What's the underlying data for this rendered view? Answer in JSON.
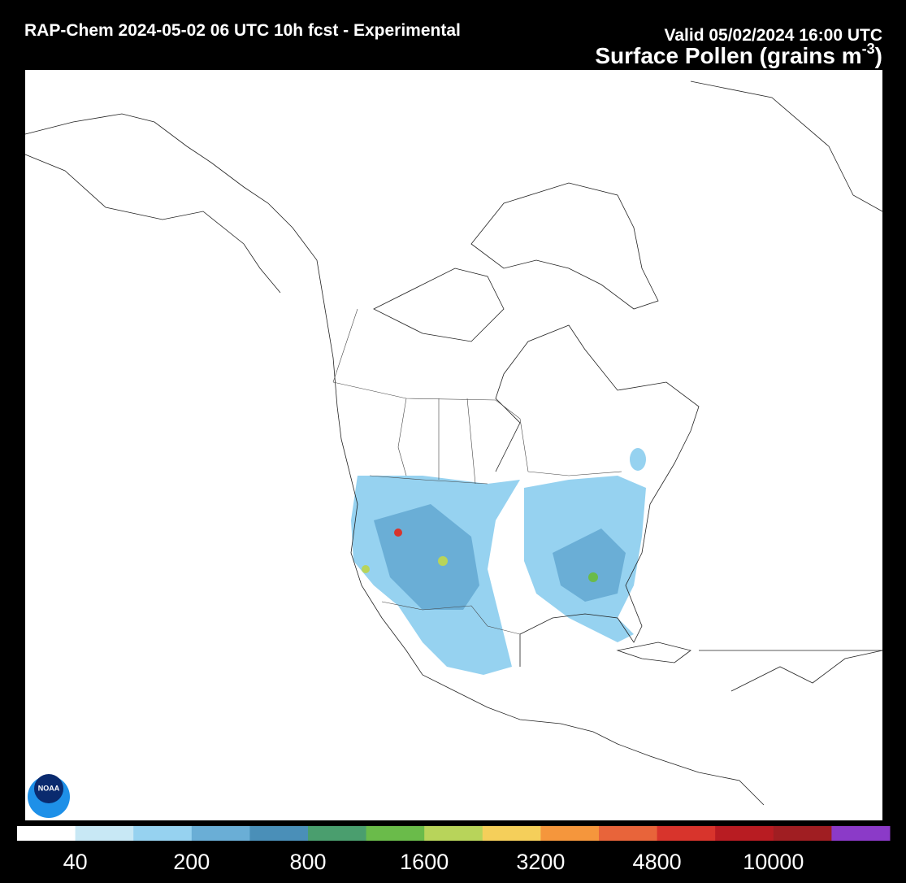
{
  "header": {
    "title": "RAP-Chem 2024-05-02 06 UTC 10h fcst - Experimental",
    "valid": "Valid 05/02/2024 16:00 UTC",
    "product": "Surface Pollen (grains m",
    "product_exponent": "-3",
    "product_close": ")"
  },
  "logo": "NOAA",
  "colorbar": {
    "colors": [
      "#ffffff",
      "#c8e8f5",
      "#96d2f0",
      "#6aaed6",
      "#4a8fb8",
      "#4a9e6e",
      "#6abb4a",
      "#b8d45a",
      "#f5cf5a",
      "#f5963c",
      "#e8643a",
      "#d8342c",
      "#b81c22",
      "#a01e22",
      "#8b3ac8"
    ],
    "labels": [
      "40",
      "200",
      "800",
      "1600",
      "3200",
      "4800",
      "10000"
    ]
  }
}
